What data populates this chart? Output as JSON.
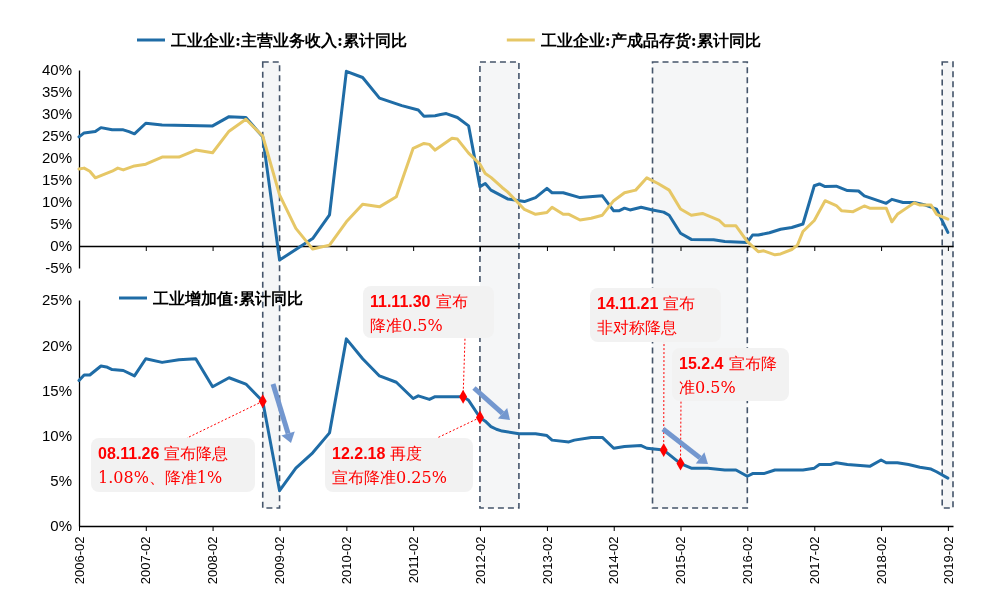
{
  "chart_data": [
    {
      "type": "line",
      "xlim": [
        "2006-02",
        "2019-03"
      ],
      "ylim": [
        -5,
        40
      ],
      "xticks": [
        "2006-02",
        "2007-02",
        "2008-02",
        "2009-02",
        "2010-02",
        "2011-02",
        "2012-02",
        "2013-02",
        "2014-02",
        "2015-02",
        "2016-02",
        "2017-02",
        "2018-02",
        "2019-02"
      ],
      "yticks": [
        {
          "value": -5,
          "label": "-5%"
        },
        {
          "value": 0,
          "label": "0%"
        },
        {
          "value": 5,
          "label": "5%"
        },
        {
          "value": 10,
          "label": "10%"
        },
        {
          "value": 15,
          "label": "15%"
        },
        {
          "value": 20,
          "label": "20%"
        },
        {
          "value": 25,
          "label": "25%"
        },
        {
          "value": 30,
          "label": "30%"
        },
        {
          "value": 35,
          "label": "35%"
        },
        {
          "value": 40,
          "label": "40%"
        }
      ],
      "tick_labels": "y",
      "legend": "top",
      "marker": "none",
      "line_style": "solid",
      "bands": [
        {
          "axis": "x",
          "from": "2008-11",
          "to": "2009-02",
          "color": "#44546a"
        },
        {
          "axis": "x",
          "from": "2012-02",
          "to": "2012-09",
          "color": "#44546a"
        },
        {
          "axis": "x",
          "from": "2014-09",
          "to": "2016-02",
          "color": "#44546a"
        },
        {
          "axis": "x",
          "from": "2019-01",
          "to": "2019-03",
          "color": "#44546a"
        }
      ],
      "series": [
        {
          "name": "工业企业:主营业务收入:累计同比",
          "color": "#1f6ca6",
          "x": [
            "2006-02",
            "2006-03",
            "2006-05",
            "2006-06",
            "2006-08",
            "2006-10",
            "2006-11",
            "2006-12",
            "2007-02",
            "2007-05",
            "2008-02",
            "2008-05",
            "2008-08",
            "2008-11",
            "2009-02",
            "2009-08",
            "2009-11",
            "2010-02",
            "2010-05",
            "2010-08",
            "2010-12",
            "2011-03",
            "2011-04",
            "2011-06",
            "2011-07",
            "2011-08",
            "2011-10",
            "2011-12",
            "2012-02",
            "2012-03",
            "2012-04",
            "2012-07",
            "2012-10",
            "2012-12",
            "2013-02",
            "2013-03",
            "2013-05",
            "2013-08",
            "2013-12",
            "2014-02",
            "2014-03",
            "2014-04",
            "2014-05",
            "2014-07",
            "2014-09",
            "2014-11",
            "2014-12",
            "2015-02",
            "2015-04",
            "2015-08",
            "2015-10",
            "2016-02",
            "2016-03",
            "2016-04",
            "2016-06",
            "2016-08",
            "2016-10",
            "2016-12",
            "2017-02",
            "2017-03",
            "2017-04",
            "2017-06",
            "2017-08",
            "2017-10",
            "2017-11",
            "2018-03",
            "2018-04",
            "2018-06",
            "2018-08",
            "2018-10",
            "2018-12",
            "2019-02"
          ],
          "values": [
            24.8,
            25.7,
            26.0,
            26.9,
            26.4,
            26.4,
            26.0,
            25.5,
            27.9,
            27.5,
            27.3,
            29.4,
            29.2,
            24.8,
            -3.2,
            1.7,
            7.1,
            39.7,
            38.3,
            33.6,
            31.9,
            30.9,
            29.5,
            29.6,
            29.9,
            30.1,
            29.2,
            27.3,
            13.5,
            14.2,
            12.7,
            10.7,
            10.1,
            11.0,
            13.1,
            12.1,
            12.1,
            11.0,
            11.4,
            8.0,
            8.0,
            8.6,
            8.2,
            8.8,
            8.2,
            7.7,
            7.0,
            2.9,
            1.5,
            1.4,
            1.0,
            0.8,
            2.5,
            2.5,
            3.0,
            3.8,
            4.2,
            5.0,
            13.7,
            14.1,
            13.5,
            13.6,
            12.6,
            12.5,
            11.4,
            9.7,
            10.6,
            9.9,
            9.9,
            9.3,
            8.4,
            3.1
          ]
        },
        {
          "name": "工业企业:产成品存货:累计同比",
          "color": "#e6c766",
          "x": [
            "2006-02",
            "2006-03",
            "2006-04",
            "2006-05",
            "2006-08",
            "2006-09",
            "2006-10",
            "2006-12",
            "2007-02",
            "2007-05",
            "2007-08",
            "2007-11",
            "2008-02",
            "2008-05",
            "2008-08",
            "2008-11",
            "2009-02",
            "2009-05",
            "2009-08",
            "2009-11",
            "2010-02",
            "2010-05",
            "2010-08",
            "2010-11",
            "2011-02",
            "2011-04",
            "2011-05",
            "2011-06",
            "2011-08",
            "2011-09",
            "2011-10",
            "2011-12",
            "2012-02",
            "2012-03",
            "2012-04",
            "2012-06",
            "2012-07",
            "2012-10",
            "2012-12",
            "2013-02",
            "2013-03",
            "2013-05",
            "2013-06",
            "2013-08",
            "2013-10",
            "2013-12",
            "2014-02",
            "2014-04",
            "2014-06",
            "2014-08",
            "2014-10",
            "2014-12",
            "2015-02",
            "2015-04",
            "2015-06",
            "2015-09",
            "2015-10",
            "2015-12",
            "2016-02",
            "2016-04",
            "2016-05",
            "2016-07",
            "2016-08",
            "2016-10",
            "2016-11",
            "2016-12",
            "2017-02",
            "2017-04",
            "2017-06",
            "2017-07",
            "2017-09",
            "2017-11",
            "2017-12",
            "2018-03",
            "2018-04",
            "2018-05",
            "2018-08",
            "2018-09",
            "2018-11",
            "2018-12",
            "2019-02"
          ],
          "values": [
            17.5,
            17.7,
            17.0,
            15.5,
            17.0,
            17.7,
            17.3,
            18.2,
            18.6,
            20.2,
            20.2,
            21.8,
            21.2,
            26.1,
            28.8,
            25.0,
            11.6,
            4.0,
            -0.7,
            0.2,
            5.5,
            9.5,
            8.9,
            11.2,
            22.2,
            23.3,
            23.1,
            21.8,
            23.6,
            24.5,
            24.3,
            21.1,
            18.6,
            16.5,
            15.6,
            13.3,
            12.3,
            8.3,
            7.2,
            7.6,
            8.8,
            7.2,
            7.2,
            5.9,
            6.3,
            7.0,
            10.3,
            12.1,
            12.7,
            15.5,
            14.2,
            12.7,
            8.4,
            7.0,
            7.4,
            5.8,
            4.6,
            4.6,
            1.0,
            -1.3,
            -1.1,
            -2.0,
            -1.8,
            -0.8,
            0.2,
            3.3,
            5.8,
            10.3,
            9.2,
            8.0,
            7.8,
            9.1,
            8.6,
            8.6,
            5.5,
            7.2,
            9.8,
            9.3,
            9.3,
            7.2,
            6.1
          ]
        }
      ]
    },
    {
      "type": "line",
      "xlim": [
        "2006-02",
        "2019-03"
      ],
      "ylim": [
        0,
        25
      ],
      "xticks": [
        "2006-02",
        "2007-02",
        "2008-02",
        "2009-02",
        "2010-02",
        "2011-02",
        "2012-02",
        "2013-02",
        "2014-02",
        "2015-02",
        "2016-02",
        "2017-02",
        "2018-02",
        "2019-02"
      ],
      "yticks": [
        {
          "value": 0,
          "label": "0%"
        },
        {
          "value": 5,
          "label": "5%"
        },
        {
          "value": 10,
          "label": "10%"
        },
        {
          "value": 15,
          "label": "15%"
        },
        {
          "value": 20,
          "label": "20%"
        },
        {
          "value": 25,
          "label": "25%"
        }
      ],
      "legend": "top left",
      "line_style": "solid",
      "series": [
        {
          "name": "工业增加值:累计同比",
          "color": "#1f6ca6",
          "marker": "none",
          "x": [
            "2006-02",
            "2006-03",
            "2006-04",
            "2006-06",
            "2006-07",
            "2006-08",
            "2006-10",
            "2006-12",
            "2007-02",
            "2007-05",
            "2007-08",
            "2007-11",
            "2008-02",
            "2008-05",
            "2008-08",
            "2008-11",
            "2009-02",
            "2009-05",
            "2009-08",
            "2009-11",
            "2010-02",
            "2010-05",
            "2010-08",
            "2010-11",
            "2011-02",
            "2011-03",
            "2011-05",
            "2011-06",
            "2011-08",
            "2011-11",
            "2011-12",
            "2012-02",
            "2012-03",
            "2012-04",
            "2012-05",
            "2012-06",
            "2012-09",
            "2012-12",
            "2013-02",
            "2013-03",
            "2013-06",
            "2013-07",
            "2013-10",
            "2013-12",
            "2014-02",
            "2014-04",
            "2014-07",
            "2014-08",
            "2014-11",
            "2015-02",
            "2015-04",
            "2015-07",
            "2015-10",
            "2015-12",
            "2016-02",
            "2016-03",
            "2016-05",
            "2016-07",
            "2016-12",
            "2017-02",
            "2017-03",
            "2017-05",
            "2017-06",
            "2017-08",
            "2017-12",
            "2018-02",
            "2018-03",
            "2018-05",
            "2018-07",
            "2018-09",
            "2018-11",
            "2018-12",
            "2019-02"
          ],
          "values": [
            16.1,
            16.7,
            16.7,
            17.7,
            17.6,
            17.3,
            17.2,
            16.6,
            18.5,
            18.1,
            18.4,
            18.5,
            15.4,
            16.4,
            15.7,
            13.8,
            3.9,
            6.4,
            8.1,
            10.3,
            20.7,
            18.5,
            16.6,
            15.9,
            14.1,
            14.4,
            14.0,
            14.3,
            14.3,
            14.3,
            13.9,
            12.0,
            11.6,
            11.0,
            10.7,
            10.5,
            10.2,
            10.2,
            10.0,
            9.5,
            9.3,
            9.5,
            9.8,
            9.8,
            8.6,
            8.8,
            8.9,
            8.6,
            8.4,
            6.9,
            6.4,
            6.4,
            6.2,
            6.2,
            5.5,
            5.8,
            5.8,
            6.2,
            6.2,
            6.4,
            6.8,
            6.8,
            7.0,
            6.8,
            6.6,
            7.3,
            7.0,
            7.0,
            6.8,
            6.5,
            6.3,
            6.0,
            5.3
          ]
        },
        {
          "type": "scatter",
          "color": "#ff0000",
          "marker": "diamond",
          "x": [
            "2008-11",
            "2011-11",
            "2012-02",
            "2014-11",
            "2015-02"
          ],
          "values": [
            13.8,
            14.3,
            12.0,
            8.4,
            6.9
          ]
        }
      ],
      "annotations": [
        {
          "text": "08.11.26 宣布降息1.08%、降准1%",
          "x": "2008-11",
          "y": 13.8
        },
        {
          "text": "11.11.30 宣布降准0.5%",
          "x": "2011-11",
          "y": 14.3
        },
        {
          "text": "12.2.18 再度宣布降准0.25%",
          "x": "2012-02",
          "y": 12.0
        },
        {
          "text": "14.11.21 宣布非对称降息",
          "x": "2014-11",
          "y": 8.4
        },
        {
          "text": "15.2.4 宣布降准0.5%",
          "x": "2015-02",
          "y": 6.9
        }
      ]
    }
  ]
}
